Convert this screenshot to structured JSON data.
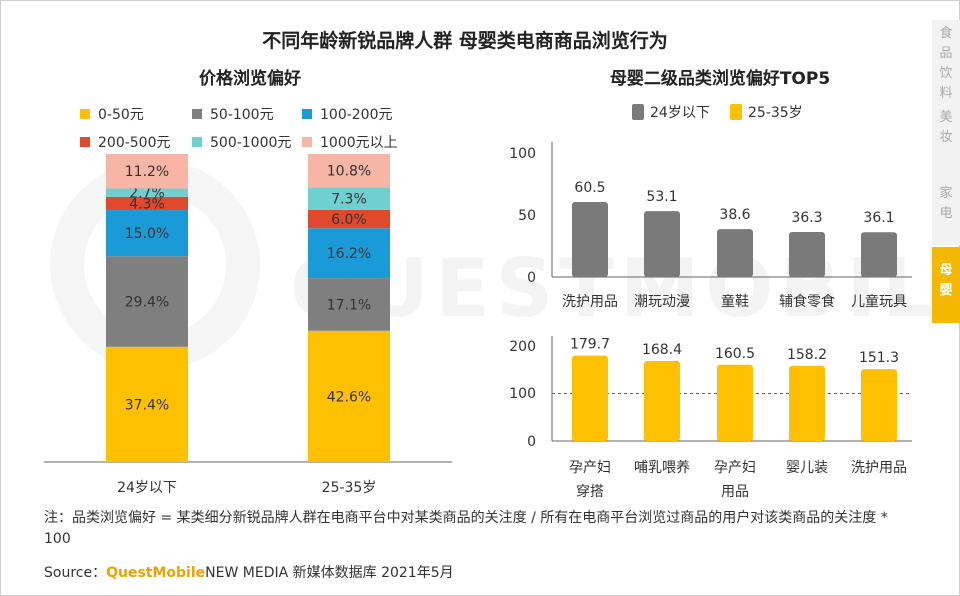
{
  "title": "不同年龄新锐品牌人群 母婴类电商商品浏览行为",
  "side_nav": [
    "食品饮料",
    "美妆",
    "家电",
    "母婴"
  ],
  "watermark": "QUESTMOBILE",
  "note": "注：品类浏览偏好 = 某类细分新锐品牌人群在电商平台中对某类商品的关注度 / 所有在电商平台浏览过商品的用户对该类商品的关注度 * 100",
  "source": {
    "label": "Source：",
    "brand": "QuestMobile",
    "rest": "NEW MEDIA 新媒体数据库 2021年5月"
  },
  "colors": {
    "yellow": "#ffc000",
    "gray": "#7f7f7f",
    "blue": "#1a9ad6",
    "red": "#e0492c",
    "teal": "#70cfcf",
    "pink": "#f7b5a5",
    "dark_gray": "#7a7a7a"
  },
  "chart_data": [
    {
      "type": "bar",
      "stacked": true,
      "title": "价格浏览偏好",
      "categories": [
        "24岁以下",
        "25-35岁"
      ],
      "series": [
        {
          "name": "0-50元",
          "color": "#ffc000",
          "values": [
            37.4,
            42.6
          ],
          "labels": [
            "37.4%",
            "42.6%"
          ]
        },
        {
          "name": "50-100元",
          "color": "#7f7f7f",
          "values": [
            29.4,
            17.1
          ],
          "labels": [
            "29.4%",
            "17.1%"
          ]
        },
        {
          "name": "100-200元",
          "color": "#1a9ad6",
          "values": [
            15.0,
            16.2
          ],
          "labels": [
            "15.0%",
            "16.2%"
          ]
        },
        {
          "name": "200-500元",
          "color": "#e0492c",
          "values": [
            4.3,
            6.0
          ],
          "labels": [
            "4.3%",
            "6.0%"
          ]
        },
        {
          "name": "500-1000元",
          "color": "#70cfcf",
          "values": [
            2.7,
            7.3
          ],
          "labels": [
            "2.7%",
            "7.3%"
          ]
        },
        {
          "name": "1000元以上",
          "color": "#f7b5a5",
          "values": [
            11.2,
            10.8
          ],
          "labels": [
            "11.2%",
            "10.8%"
          ]
        }
      ],
      "ylim": [
        0,
        100
      ]
    },
    {
      "type": "bar",
      "title": "母婴二级品类浏览偏好TOP5",
      "series_name": "24岁以下",
      "categories": [
        "洗护用品",
        "潮玩动漫",
        "童鞋",
        "辅食零食",
        "儿童玩具"
      ],
      "values": [
        60.5,
        53.1,
        38.6,
        36.3,
        36.1
      ],
      "labels": [
        "60.5",
        "53.1",
        "38.6",
        "36.3",
        "36.1"
      ],
      "yticks": [
        "100",
        "50",
        "0"
      ],
      "ylim": [
        0,
        100
      ]
    },
    {
      "type": "bar",
      "series_name": "25-35岁",
      "categories": [
        "孕产妇穿搭",
        "哺乳喂养",
        "孕产妇用品",
        "婴儿装",
        "洗护用品"
      ],
      "category_lines": [
        [
          "孕产妇",
          "穿搭"
        ],
        [
          "哺乳喂养"
        ],
        [
          "孕产妇",
          "用品"
        ],
        [
          "婴儿装"
        ],
        [
          "洗护用品"
        ]
      ],
      "values": [
        179.7,
        168.4,
        160.5,
        158.2,
        151.3
      ],
      "labels": [
        "179.7",
        "168.4",
        "160.5",
        "158.2",
        "151.3"
      ],
      "yticks": [
        "200",
        "100",
        "0"
      ],
      "ylim": [
        0,
        200
      ],
      "reference_line": 100
    }
  ]
}
